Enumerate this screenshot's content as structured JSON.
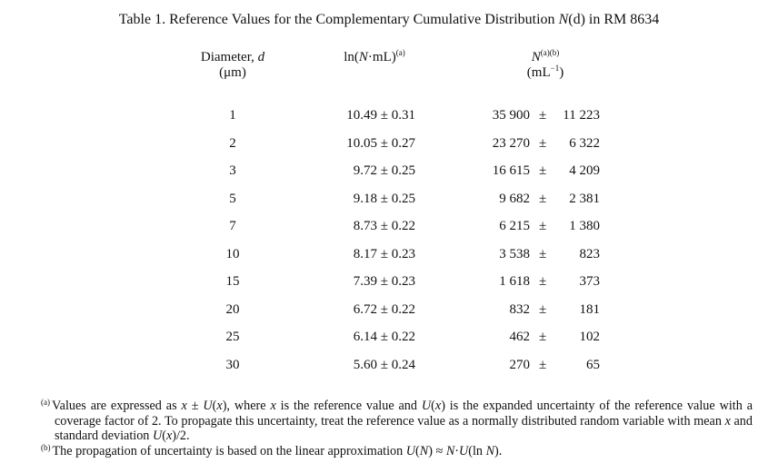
{
  "title": {
    "prefix": "Table 1.  Reference Values for the Complementary Cumulative Distribution ",
    "symbol": "N",
    "arg": "(d)",
    "suffix": " in RM 8634"
  },
  "headers": {
    "diameter": {
      "label": "Diameter, ",
      "symbol": "d",
      "unit": "(μm)"
    },
    "ln": {
      "prefix": "ln(",
      "symbol": "N",
      "suffix": "·mL)",
      "sup": "(a)"
    },
    "n": {
      "symbol": "N",
      "sup": "(a)(b)",
      "unit_prefix": "(mL",
      "unit_sup": "−1",
      "unit_suffix": ")"
    }
  },
  "rows": [
    {
      "d": "1",
      "ln": "10.49 ± 0.31",
      "n": "35 900",
      "pm": "±",
      "u": "11 223"
    },
    {
      "d": "2",
      "ln": "10.05 ± 0.27",
      "n": "23 270",
      "pm": "±",
      "u": "6 322"
    },
    {
      "d": "3",
      "ln": "9.72 ± 0.25",
      "n": "16 615",
      "pm": "±",
      "u": "4 209"
    },
    {
      "d": "5",
      "ln": "9.18 ± 0.25",
      "n": "9 682",
      "pm": "±",
      "u": "2 381"
    },
    {
      "d": "7",
      "ln": "8.73 ± 0.22",
      "n": "6 215",
      "pm": "±",
      "u": "1 380"
    },
    {
      "d": "10",
      "ln": "8.17 ± 0.23",
      "n": "3 538",
      "pm": "±",
      "u": "823"
    },
    {
      "d": "15",
      "ln": "7.39 ± 0.23",
      "n": "1 618",
      "pm": "±",
      "u": "373"
    },
    {
      "d": "20",
      "ln": "6.72 ± 0.22",
      "n": "832",
      "pm": "±",
      "u": "181"
    },
    {
      "d": "25",
      "ln": "6.14 ± 0.22",
      "n": "462",
      "pm": "±",
      "u": "102"
    },
    {
      "d": "30",
      "ln": "5.60 ± 0.24",
      "n": "270",
      "pm": "±",
      "u": "65"
    }
  ],
  "footnotes": [
    {
      "mark": "(a)",
      "segments": [
        {
          "t": "Values are expressed as "
        },
        {
          "t": "x",
          "i": true
        },
        {
          "t": " ± "
        },
        {
          "t": "U",
          "i": true
        },
        {
          "t": "("
        },
        {
          "t": "x",
          "i": true
        },
        {
          "t": "), where "
        },
        {
          "t": "x",
          "i": true
        },
        {
          "t": " is the reference value and "
        },
        {
          "t": "U",
          "i": true
        },
        {
          "t": "("
        },
        {
          "t": "x",
          "i": true
        },
        {
          "t": ") is the expanded uncertainty of the reference value with a coverage factor of 2. To propagate this uncertainty, treat the reference value as a normally distributed random variable with mean "
        },
        {
          "t": "x",
          "i": true
        },
        {
          "t": " and standard deviation "
        },
        {
          "t": "U",
          "i": true
        },
        {
          "t": "("
        },
        {
          "t": "x",
          "i": true
        },
        {
          "t": ")/2."
        }
      ]
    },
    {
      "mark": "(b)",
      "segments": [
        {
          "t": "The propagation of uncertainty is based on the linear approximation "
        },
        {
          "t": "U",
          "i": true
        },
        {
          "t": "("
        },
        {
          "t": "N",
          "i": true
        },
        {
          "t": ") ≈ "
        },
        {
          "t": "N",
          "i": true
        },
        {
          "t": "·"
        },
        {
          "t": "U",
          "i": true
        },
        {
          "t": "(ln "
        },
        {
          "t": "N",
          "i": true
        },
        {
          "t": ")."
        }
      ]
    }
  ]
}
